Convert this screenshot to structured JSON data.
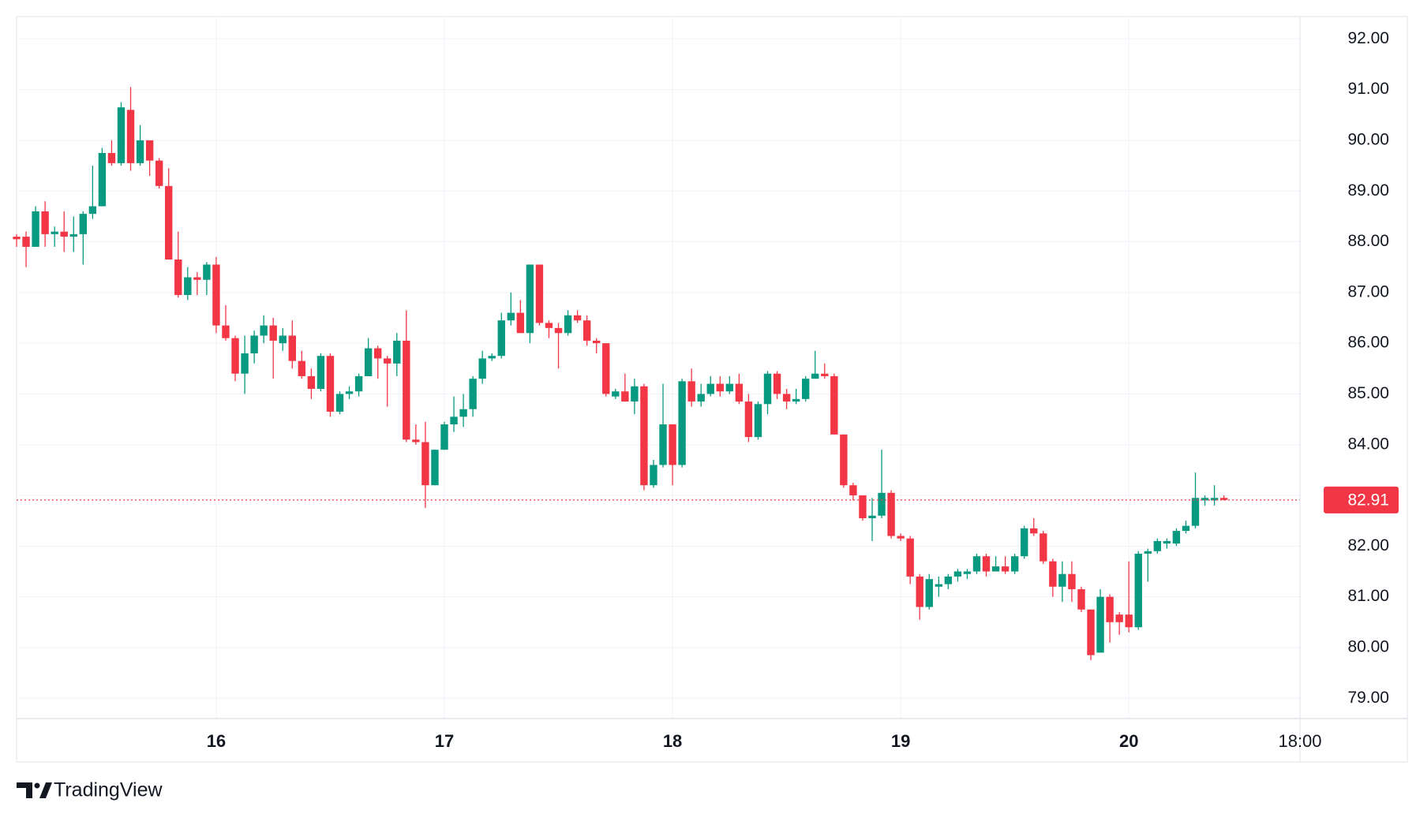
{
  "chart_data": {
    "type": "candlestick",
    "x": [
      3,
      4,
      5,
      6,
      7,
      8,
      9,
      10,
      11,
      12,
      13,
      14,
      15,
      16,
      17,
      18,
      19,
      20,
      21,
      22,
      23,
      24,
      25,
      26,
      27,
      28,
      29,
      30,
      31,
      32,
      33,
      34,
      35,
      36,
      37,
      38,
      39,
      40,
      41,
      42,
      43,
      44,
      45,
      46,
      47,
      48,
      49,
      50,
      51,
      52,
      53,
      54,
      55,
      56,
      57,
      58,
      59,
      60,
      61,
      62,
      63,
      64,
      65,
      66,
      67,
      68,
      69,
      70,
      71,
      72,
      73,
      74,
      75,
      76,
      77,
      78,
      79,
      80,
      81,
      82,
      83,
      84,
      85,
      86,
      87,
      88,
      89,
      90,
      91,
      92,
      93,
      94,
      95,
      96,
      97,
      98,
      99,
      100,
      101,
      102,
      103,
      104,
      105,
      106,
      107,
      108,
      109,
      110,
      111,
      112,
      113,
      114,
      115,
      116,
      117,
      118,
      119,
      120,
      121,
      122,
      123,
      124,
      125,
      126,
      127,
      128,
      129,
      130
    ],
    "open": [
      88.1,
      88.1,
      87.9,
      88.6,
      88.15,
      88.2,
      88.1,
      88.15,
      88.55,
      88.7,
      89.75,
      89.55,
      90.6,
      89.55,
      90.0,
      89.6,
      89.1,
      87.65,
      86.95,
      87.3,
      87.25,
      87.55,
      86.35,
      86.1,
      85.4,
      85.8,
      86.15,
      86.35,
      86.0,
      86.15,
      85.65,
      85.35,
      85.1,
      85.75,
      84.65,
      85.0,
      85.05,
      85.35,
      85.9,
      85.7,
      85.6,
      86.05,
      84.1,
      84.05,
      83.2,
      83.9,
      84.4,
      84.55,
      84.7,
      85.3,
      85.7,
      85.75,
      86.45,
      86.6,
      86.2,
      87.55,
      86.4,
      86.3,
      86.2,
      86.55,
      86.45,
      86.05,
      86.0,
      84.95,
      85.05,
      84.85,
      85.15,
      83.2,
      83.6,
      84.4,
      83.6,
      85.25,
      84.85,
      85.0,
      85.2,
      85.05,
      85.2,
      84.85,
      84.15,
      84.8,
      85.4,
      85.0,
      84.85,
      84.9,
      85.3,
      85.4,
      85.35,
      84.2,
      83.2,
      83.0,
      82.55,
      82.6,
      83.05,
      82.2,
      82.15,
      81.4,
      80.8,
      81.2,
      81.25,
      81.4,
      81.45,
      81.5,
      81.8,
      81.5,
      81.6,
      81.5,
      81.8,
      82.35,
      82.25,
      81.7,
      81.2,
      81.45,
      81.15,
      80.75,
      79.9,
      81.0,
      80.65,
      80.65,
      80.4,
      81.85,
      81.9,
      82.05,
      82.05,
      82.3,
      82.4,
      82.9,
      82.9,
      82.95
    ],
    "high": [
      88.15,
      88.2,
      88.7,
      88.8,
      88.3,
      88.6,
      88.5,
      88.6,
      89.5,
      89.85,
      90.0,
      90.75,
      91.05,
      90.3,
      90.0,
      89.65,
      89.45,
      88.2,
      87.5,
      87.4,
      87.6,
      87.7,
      86.75,
      86.15,
      86.15,
      86.25,
      86.55,
      86.5,
      86.3,
      86.45,
      85.85,
      85.5,
      85.8,
      85.8,
      85.05,
      85.15,
      85.4,
      86.1,
      85.95,
      85.75,
      86.2,
      86.65,
      84.4,
      84.45,
      83.9,
      84.45,
      84.95,
      85.0,
      85.35,
      85.85,
      85.8,
      86.6,
      87.0,
      86.85,
      87.55,
      87.55,
      86.45,
      86.4,
      86.65,
      86.65,
      86.55,
      86.1,
      86.0,
      85.1,
      85.4,
      85.3,
      85.2,
      83.7,
      85.2,
      84.4,
      85.3,
      85.5,
      85.2,
      85.35,
      85.35,
      85.35,
      85.4,
      85.0,
      84.85,
      85.45,
      85.45,
      85.1,
      85.1,
      85.35,
      85.85,
      85.6,
      85.4,
      84.2,
      83.25,
      83.0,
      82.95,
      83.9,
      83.1,
      82.25,
      82.2,
      81.45,
      81.45,
      81.4,
      81.45,
      81.55,
      81.55,
      81.85,
      81.85,
      81.8,
      81.8,
      81.85,
      82.4,
      82.55,
      82.3,
      81.75,
      81.7,
      81.7,
      81.2,
      80.75,
      81.15,
      81.05,
      80.7,
      81.7,
      81.9,
      81.95,
      82.15,
      82.15,
      82.35,
      82.5,
      83.45,
      83.0,
      83.2,
      83.0
    ],
    "low": [
      87.9,
      87.5,
      87.9,
      87.9,
      87.9,
      87.8,
      87.8,
      87.55,
      88.45,
      88.7,
      89.5,
      89.5,
      89.4,
      89.5,
      89.3,
      89.05,
      87.65,
      86.9,
      86.85,
      86.95,
      86.95,
      86.2,
      86.05,
      85.25,
      85.0,
      85.6,
      86.0,
      85.3,
      85.85,
      85.5,
      85.3,
      84.9,
      85.05,
      84.55,
      84.6,
      84.9,
      84.95,
      85.35,
      85.3,
      84.75,
      85.35,
      84.05,
      84.0,
      82.75,
      83.2,
      83.9,
      84.25,
      84.35,
      84.55,
      85.2,
      85.65,
      85.7,
      86.35,
      86.2,
      86.0,
      86.35,
      86.1,
      85.5,
      86.15,
      86.4,
      85.95,
      85.8,
      84.95,
      84.9,
      84.85,
      84.6,
      83.1,
      83.15,
      83.55,
      83.2,
      83.55,
      84.75,
      84.75,
      84.95,
      84.95,
      85.0,
      84.8,
      84.05,
      84.1,
      84.6,
      84.9,
      84.7,
      84.8,
      84.85,
      85.3,
      85.3,
      84.2,
      83.15,
      82.9,
      82.5,
      82.1,
      82.55,
      82.15,
      82.1,
      81.25,
      80.55,
      80.75,
      81.0,
      81.15,
      81.3,
      81.35,
      81.45,
      81.4,
      81.5,
      81.45,
      81.45,
      81.75,
      82.2,
      81.65,
      81.0,
      80.9,
      80.9,
      80.7,
      79.75,
      79.9,
      80.1,
      80.25,
      80.3,
      80.35,
      81.3,
      81.85,
      81.95,
      82.0,
      82.25,
      82.35,
      82.8,
      82.8,
      82.9
    ],
    "close": [
      88.05,
      87.9,
      88.6,
      88.15,
      88.2,
      88.1,
      88.15,
      88.55,
      88.7,
      89.75,
      89.55,
      90.65,
      89.55,
      90.0,
      89.6,
      89.1,
      87.65,
      86.95,
      87.3,
      87.25,
      87.55,
      86.35,
      86.1,
      85.4,
      85.8,
      86.15,
      86.35,
      86.05,
      86.15,
      85.65,
      85.35,
      85.1,
      85.75,
      84.65,
      85.0,
      85.05,
      85.35,
      85.9,
      85.7,
      85.6,
      86.05,
      84.1,
      84.05,
      83.2,
      83.9,
      84.4,
      84.55,
      84.7,
      85.3,
      85.7,
      85.75,
      86.45,
      86.6,
      86.2,
      87.55,
      86.4,
      86.3,
      86.2,
      86.55,
      86.45,
      86.05,
      86.0,
      85.0,
      85.05,
      84.85,
      85.15,
      83.2,
      83.6,
      84.4,
      83.6,
      85.25,
      84.85,
      85.0,
      85.2,
      85.05,
      85.2,
      84.85,
      84.15,
      84.8,
      85.4,
      85.0,
      84.85,
      84.9,
      85.3,
      85.4,
      85.35,
      84.2,
      83.2,
      83.0,
      82.55,
      82.6,
      83.05,
      82.2,
      82.15,
      81.4,
      80.8,
      81.35,
      81.25,
      81.4,
      81.5,
      81.5,
      81.8,
      81.5,
      81.6,
      81.5,
      81.8,
      82.35,
      82.25,
      81.7,
      81.2,
      81.45,
      81.15,
      80.75,
      79.85,
      81.0,
      80.5,
      80.5,
      80.4,
      81.85,
      81.9,
      82.1,
      82.1,
      82.3,
      82.4,
      82.95,
      82.95,
      82.95,
      82.91
    ],
    "up_color": "#089981",
    "down_color": "#f23645",
    "last_price": 82.91,
    "xlim": [
      3,
      138
    ],
    "ylim": [
      78.6,
      92.44
    ],
    "xticks": [
      {
        "value": 24,
        "label": "16"
      },
      {
        "value": 48,
        "label": "17"
      },
      {
        "value": 72,
        "label": "18"
      },
      {
        "value": 96,
        "label": "19"
      },
      {
        "value": 120,
        "label": "20"
      },
      {
        "value": 138,
        "label": "18:00"
      }
    ],
    "yticks": [
      {
        "value": 79,
        "label": "79.00"
      },
      {
        "value": 80,
        "label": "80.00"
      },
      {
        "value": 81,
        "label": "81.00"
      },
      {
        "value": 82,
        "label": "82.00"
      },
      {
        "value": 83,
        "label": "83.00"
      },
      {
        "value": 84,
        "label": "84.00"
      },
      {
        "value": 85,
        "label": "85.00"
      },
      {
        "value": 86,
        "label": "86.00"
      },
      {
        "value": 87,
        "label": "87.00"
      },
      {
        "value": 88,
        "label": "88.00"
      },
      {
        "value": 89,
        "label": "89.00"
      },
      {
        "value": 90,
        "label": "90.00"
      },
      {
        "value": 91,
        "label": "91.00"
      },
      {
        "value": 92,
        "label": "92.00"
      }
    ],
    "grid": true
  },
  "brand": "TradingView"
}
